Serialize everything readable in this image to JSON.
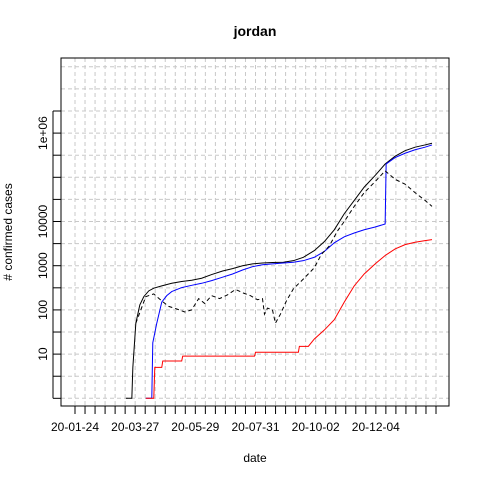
{
  "chart_data": {
    "type": "line",
    "title": "jordan",
    "xlabel": "date",
    "ylabel": "# confirmed cases",
    "y_scale": "log10",
    "grid": true,
    "x_tick_labels": [
      "20-01-24",
      "20-03-27",
      "20-05-29",
      "20-07-31",
      "20-10-02",
      "20-12-04"
    ],
    "y_tick_labels": [
      "10",
      "100",
      "1000",
      "10000",
      "1e+06"
    ],
    "y_tick_values": [
      10,
      100,
      1000,
      10000,
      1000000
    ],
    "x_range": [
      "2020-01-09",
      "2021-01-05"
    ],
    "y_range": [
      0.67,
      50000000
    ],
    "series": [
      {
        "color": "#000000",
        "dash": "solid",
        "points": [
          [
            "2020-02-29",
            1
          ],
          [
            "2020-03-06",
            1
          ],
          [
            "2020-03-07",
            5
          ],
          [
            "2020-03-10",
            50
          ],
          [
            "2020-03-14",
            130
          ],
          [
            "2020-03-18",
            200
          ],
          [
            "2020-03-23",
            270
          ],
          [
            "2020-03-28",
            310
          ],
          [
            "2020-04-05",
            350
          ],
          [
            "2020-04-15",
            400
          ],
          [
            "2020-04-25",
            440
          ],
          [
            "2020-05-05",
            470
          ],
          [
            "2020-05-15",
            520
          ],
          [
            "2020-05-25",
            630
          ],
          [
            "2020-06-05",
            760
          ],
          [
            "2020-06-15",
            860
          ],
          [
            "2020-06-25",
            1000
          ],
          [
            "2020-07-05",
            1100
          ],
          [
            "2020-07-15",
            1150
          ],
          [
            "2020-07-25",
            1180
          ],
          [
            "2020-08-05",
            1200
          ],
          [
            "2020-08-15",
            1300
          ],
          [
            "2020-08-25",
            1550
          ],
          [
            "2020-09-05",
            2200
          ],
          [
            "2020-09-15",
            3500
          ],
          [
            "2020-09-25",
            6500
          ],
          [
            "2020-10-05",
            15000
          ],
          [
            "2020-10-15",
            30000
          ],
          [
            "2020-10-25",
            60000
          ],
          [
            "2020-11-05",
            110000
          ],
          [
            "2020-11-15",
            200000
          ],
          [
            "2020-11-25",
            300000
          ],
          [
            "2020-12-05",
            400000
          ],
          [
            "2020-12-15",
            480000
          ],
          [
            "2020-12-25",
            540000
          ],
          [
            "2021-01-01",
            590000
          ]
        ]
      },
      {
        "color": "#0000ff",
        "dash": "solid",
        "points": [
          [
            "2020-03-20",
            1
          ],
          [
            "2020-03-26",
            1
          ],
          [
            "2020-03-27",
            18
          ],
          [
            "2020-03-31",
            50
          ],
          [
            "2020-04-05",
            150
          ],
          [
            "2020-04-10",
            210
          ],
          [
            "2020-04-15",
            260
          ],
          [
            "2020-04-25",
            320
          ],
          [
            "2020-05-05",
            360
          ],
          [
            "2020-05-15",
            400
          ],
          [
            "2020-05-25",
            460
          ],
          [
            "2020-06-05",
            550
          ],
          [
            "2020-06-15",
            650
          ],
          [
            "2020-06-25",
            800
          ],
          [
            "2020-07-05",
            950
          ],
          [
            "2020-07-15",
            1050
          ],
          [
            "2020-07-25",
            1100
          ],
          [
            "2020-08-05",
            1150
          ],
          [
            "2020-08-15",
            1200
          ],
          [
            "2020-08-25",
            1300
          ],
          [
            "2020-09-05",
            1550
          ],
          [
            "2020-09-15",
            2100
          ],
          [
            "2020-09-25",
            3300
          ],
          [
            "2020-10-05",
            4500
          ],
          [
            "2020-10-15",
            5500
          ],
          [
            "2020-10-25",
            6500
          ],
          [
            "2020-11-05",
            7500
          ],
          [
            "2020-11-15",
            8800
          ],
          [
            "2020-11-16",
            200000
          ],
          [
            "2020-11-25",
            280000
          ],
          [
            "2020-12-05",
            350000
          ],
          [
            "2020-12-15",
            420000
          ],
          [
            "2020-12-25",
            480000
          ],
          [
            "2021-01-01",
            540000
          ]
        ]
      },
      {
        "color": "#ff0000",
        "dash": "solid",
        "points": [
          [
            "2020-03-20",
            1
          ],
          [
            "2020-03-28",
            1
          ],
          [
            "2020-03-29",
            5
          ],
          [
            "2020-04-05",
            5
          ],
          [
            "2020-04-06",
            7
          ],
          [
            "2020-04-25",
            7
          ],
          [
            "2020-04-26",
            9
          ],
          [
            "2020-07-07",
            9
          ],
          [
            "2020-07-08",
            11
          ],
          [
            "2020-08-20",
            11
          ],
          [
            "2020-08-21",
            15
          ],
          [
            "2020-08-30",
            15
          ],
          [
            "2020-09-05",
            22
          ],
          [
            "2020-09-15",
            35
          ],
          [
            "2020-09-25",
            60
          ],
          [
            "2020-10-05",
            150
          ],
          [
            "2020-10-15",
            350
          ],
          [
            "2020-10-25",
            650
          ],
          [
            "2020-11-05",
            1100
          ],
          [
            "2020-11-15",
            1700
          ],
          [
            "2020-11-25",
            2400
          ],
          [
            "2020-12-05",
            3000
          ],
          [
            "2020-12-15",
            3400
          ],
          [
            "2020-12-25",
            3700
          ],
          [
            "2021-01-01",
            3900
          ]
        ]
      },
      {
        "color": "#000000",
        "dash": "dashed",
        "points": [
          [
            "2020-03-10",
            50
          ],
          [
            "2020-03-20",
            200
          ],
          [
            "2020-03-28",
            230
          ],
          [
            "2020-04-05",
            160
          ],
          [
            "2020-04-12",
            120
          ],
          [
            "2020-04-20",
            105
          ],
          [
            "2020-04-28",
            90
          ],
          [
            "2020-05-05",
            100
          ],
          [
            "2020-05-12",
            180
          ],
          [
            "2020-05-18",
            140
          ],
          [
            "2020-05-25",
            210
          ],
          [
            "2020-06-02",
            180
          ],
          [
            "2020-06-10",
            220
          ],
          [
            "2020-06-18",
            290
          ],
          [
            "2020-06-26",
            240
          ],
          [
            "2020-07-03",
            210
          ],
          [
            "2020-07-10",
            170
          ],
          [
            "2020-07-15",
            180
          ],
          [
            "2020-07-17",
            80
          ],
          [
            "2020-07-20",
            110
          ],
          [
            "2020-07-25",
            100
          ],
          [
            "2020-07-28",
            50
          ],
          [
            "2020-08-02",
            80
          ],
          [
            "2020-08-08",
            160
          ],
          [
            "2020-08-15",
            300
          ],
          [
            "2020-08-25",
            500
          ],
          [
            "2020-09-05",
            900
          ],
          [
            "2020-09-12",
            1800
          ],
          [
            "2020-09-20",
            2800
          ],
          [
            "2020-09-28",
            6000
          ],
          [
            "2020-10-05",
            10000
          ],
          [
            "2020-10-15",
            22000
          ],
          [
            "2020-10-25",
            45000
          ],
          [
            "2020-11-05",
            80000
          ],
          [
            "2020-11-15",
            140000
          ],
          [
            "2020-11-25",
            90000
          ],
          [
            "2020-12-05",
            70000
          ],
          [
            "2020-12-15",
            45000
          ],
          [
            "2020-12-25",
            30000
          ],
          [
            "2021-01-01",
            22000
          ]
        ]
      }
    ]
  }
}
